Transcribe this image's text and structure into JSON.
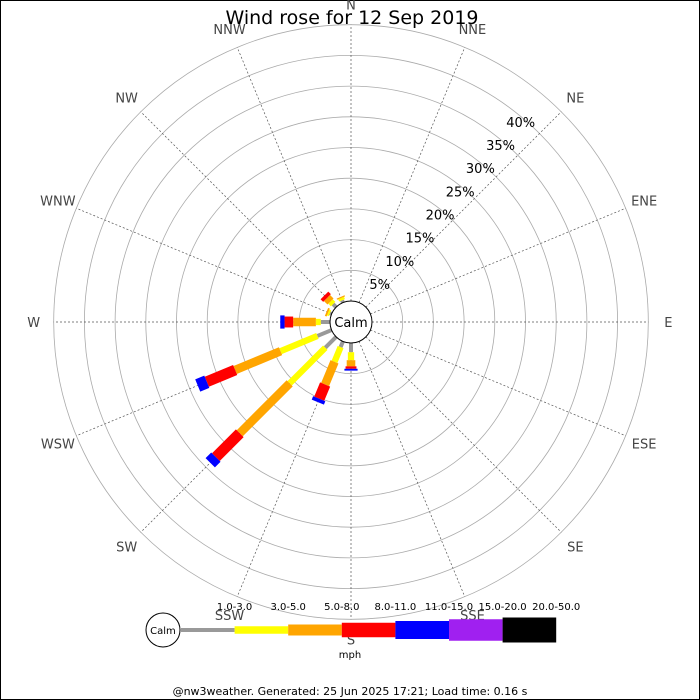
{
  "chart_data": {
    "type": "wind-rose",
    "title": "Wind rose for 12 Sep 2019",
    "directions": [
      "N",
      "NNE",
      "NE",
      "ENE",
      "E",
      "ESE",
      "SE",
      "SSE",
      "S",
      "SSW",
      "SW",
      "WSW",
      "W",
      "WNW",
      "NW",
      "NNW"
    ],
    "radial_ticks": [
      "5%",
      "10%",
      "15%",
      "20%",
      "25%",
      "30%",
      "35%",
      "40%"
    ],
    "radial_max_percent": 45,
    "calm_label": "Calm",
    "speed_bins": [
      {
        "label": "1.0-3.0",
        "color": "#999999"
      },
      {
        "label": "3.0-5.0",
        "color": "#ffff00"
      },
      {
        "label": "5.0-8.0",
        "color": "#ffa500"
      },
      {
        "label": "8.0-11.0",
        "color": "#ff0000"
      },
      {
        "label": "11.0-15.0",
        "color": "#0000ff"
      },
      {
        "label": "15.0-20.0",
        "color": "#a020f0"
      },
      {
        "label": "20.0-50.0",
        "color": "#000000"
      }
    ],
    "unit": "mph",
    "series": [
      {
        "direction": "N",
        "values": [
          0,
          0,
          0,
          0,
          0,
          0,
          0
        ]
      },
      {
        "direction": "NNE",
        "values": [
          0,
          0,
          0,
          0,
          0,
          0,
          0
        ]
      },
      {
        "direction": "NE",
        "values": [
          0,
          0,
          0,
          0,
          0,
          0,
          0
        ]
      },
      {
        "direction": "ENE",
        "values": [
          0,
          0,
          0,
          0,
          0,
          0,
          0
        ]
      },
      {
        "direction": "E",
        "values": [
          0,
          0,
          0,
          0,
          0,
          0,
          0
        ]
      },
      {
        "direction": "ESE",
        "values": [
          0,
          0,
          0,
          0,
          0,
          0,
          0
        ]
      },
      {
        "direction": "SE",
        "values": [
          0,
          0,
          0,
          0,
          0,
          0,
          0
        ]
      },
      {
        "direction": "SSE",
        "values": [
          0,
          0,
          0,
          0,
          0,
          0,
          0
        ]
      },
      {
        "direction": "S",
        "values": [
          1.5,
          1.3,
          1.0,
          0.4,
          0.3,
          0,
          0
        ]
      },
      {
        "direction": "SSW",
        "values": [
          1.0,
          2.6,
          4.0,
          2.5,
          0.6,
          0,
          0
        ]
      },
      {
        "direction": "SW",
        "values": [
          2.5,
          8.2,
          11.5,
          5.5,
          1.3,
          0,
          0
        ]
      },
      {
        "direction": "WSW",
        "values": [
          2.5,
          6.5,
          8.0,
          5.0,
          1.6,
          0,
          0
        ]
      },
      {
        "direction": "W",
        "values": [
          1.5,
          0.8,
          3.7,
          1.4,
          0.7,
          0,
          0
        ]
      },
      {
        "direction": "WNW",
        "values": [
          0.3,
          0.3,
          0.3,
          0,
          0,
          0,
          0
        ]
      },
      {
        "direction": "NW",
        "values": [
          0.7,
          0.6,
          0.8,
          0.6,
          0,
          0,
          0
        ]
      },
      {
        "direction": "NNW",
        "values": [
          0.4,
          0.4,
          0.2,
          0,
          0,
          0,
          0
        ]
      }
    ]
  },
  "footer": "@nw3weather. Generated: 25 Jun 2025 17:21; Load time: 0.16 s"
}
